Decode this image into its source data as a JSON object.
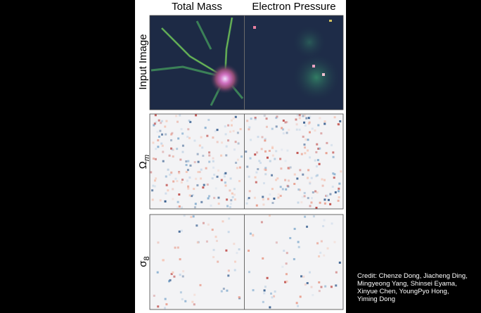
{
  "figure": {
    "columns": [
      "Total Mass",
      "Electron Pressure"
    ],
    "rows": [
      {
        "label": "Input Image"
      },
      {
        "symbol": "Ω",
        "subscript": "m"
      },
      {
        "symbol": "σ",
        "subscript": "8"
      }
    ],
    "credit": [
      "Credit: Chenze Dong, Jiacheng Ding,",
      "Mingyeong Yang, Shinsei Eyama,",
      "Xinyue Chen, YoungPyo Hong,",
      "Yiming Dong"
    ]
  }
}
